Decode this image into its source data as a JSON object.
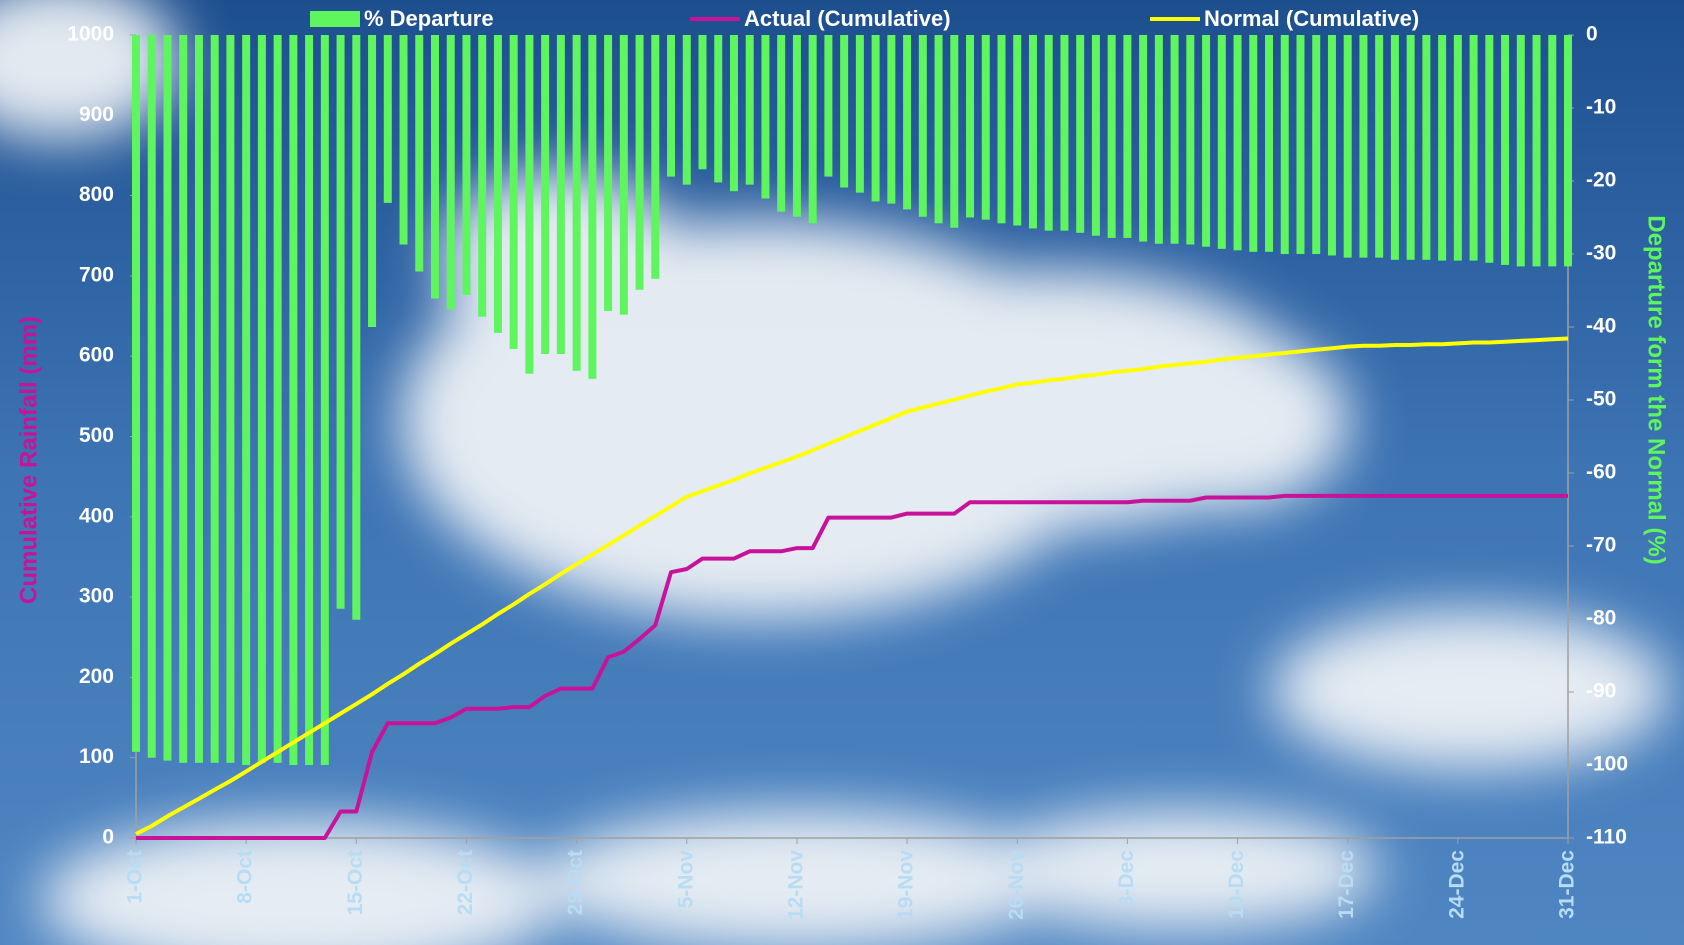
{
  "chart_data": {
    "type": "combo",
    "legend": "top",
    "y_label": "Cumulative Rainfall (mm)",
    "y2_label": "Departure form the Normal (%)",
    "ylim": [
      0,
      1000
    ],
    "yticks": [
      0,
      100,
      200,
      300,
      400,
      500,
      600,
      700,
      800,
      900,
      1000
    ],
    "y2lim": [
      -110,
      0
    ],
    "y2ticks": [
      0,
      -10,
      -20,
      -30,
      -40,
      -50,
      -60,
      -70,
      -80,
      -90,
      -100,
      -110
    ],
    "categories": [
      "1-Oct",
      null,
      null,
      null,
      null,
      null,
      null,
      "8-Oct",
      null,
      null,
      null,
      null,
      null,
      null,
      "15-Oct",
      null,
      null,
      null,
      null,
      null,
      null,
      "22-Oct",
      null,
      null,
      null,
      null,
      null,
      null,
      "29-Oct",
      null,
      null,
      null,
      null,
      null,
      null,
      "5-Nov",
      null,
      null,
      null,
      null,
      null,
      null,
      "12-Nov",
      null,
      null,
      null,
      null,
      null,
      null,
      "19-Nov",
      null,
      null,
      null,
      null,
      null,
      null,
      "26-Nov",
      null,
      null,
      null,
      null,
      null,
      null,
      "3-Dec",
      null,
      null,
      null,
      null,
      null,
      null,
      "10-Dec",
      null,
      null,
      null,
      null,
      null,
      null,
      "17-Dec",
      null,
      null,
      null,
      null,
      null,
      null,
      "24-Dec",
      null,
      null,
      null,
      null,
      null,
      null,
      "31-Dec"
    ],
    "series": [
      {
        "name": "% Departure",
        "type": "bar",
        "axis": "y2",
        "color": "#5ef55e",
        "values": [
          -98.2,
          -99,
          -99.4,
          -99.7,
          -99.7,
          -99.7,
          -99.7,
          -100,
          -99.7,
          -99.7,
          -100,
          -100,
          -100,
          -78.6,
          -80.1,
          -40,
          -23,
          -28.7,
          -32.4,
          -36.1,
          -37.6,
          -35.6,
          -38.6,
          -40.8,
          -43,
          -46.4,
          -43.7,
          -43.7,
          -46,
          -47.1,
          -37.8,
          -38.3,
          -34.9,
          -33.4,
          -19.4,
          -20.5,
          -18.4,
          -20.2,
          -21.4,
          -20.5,
          -22.4,
          -24.2,
          -24.9,
          -25.8,
          -19.4,
          -20.9,
          -21.6,
          -22.8,
          -23.1,
          -23.9,
          -24.9,
          -25.8,
          -26.4,
          -25,
          -25.3,
          -25.8,
          -26.1,
          -26.5,
          -26.8,
          -26.8,
          -27.1,
          -27.5,
          -27.8,
          -27.8,
          -28.3,
          -28.6,
          -28.6,
          -28.7,
          -29,
          -29.3,
          -29.5,
          -29.7,
          -29.7,
          -30,
          -30,
          -30,
          -30.2,
          -30.5,
          -30.5,
          -30.5,
          -30.8,
          -30.8,
          -30.8,
          -30.9,
          -30.9,
          -30.9,
          -31.2,
          -31.5,
          -31.7,
          -31.7,
          -31.7,
          -31.7
        ]
      },
      {
        "name": "Actual (Cumulative)",
        "type": "line",
        "color": "#c8129a",
        "values": [
          0,
          0,
          0,
          0,
          0,
          0,
          0,
          0,
          0,
          0,
          0,
          0,
          0,
          33,
          33,
          107,
          143,
          143,
          143,
          143,
          150,
          161,
          161,
          161,
          163,
          163,
          177,
          186,
          186,
          186,
          225,
          232,
          248,
          265,
          331,
          335,
          348,
          348,
          348,
          357,
          357,
          357,
          361,
          361,
          399,
          399,
          399,
          399,
          399,
          404,
          404,
          404,
          404,
          418,
          418,
          418,
          418,
          418,
          418,
          418,
          418,
          418,
          418,
          418,
          420,
          420,
          420,
          420,
          424,
          424,
          424,
          424,
          424,
          426,
          426,
          426,
          426,
          426,
          426,
          426,
          426,
          426,
          426,
          426,
          426,
          426,
          426,
          426,
          426,
          426,
          426,
          426
        ]
      },
      {
        "name": "Normal (Cumulative)",
        "type": "line",
        "color": "#ffff00",
        "values": [
          5,
          15,
          27,
          38,
          49,
          60,
          71,
          83,
          95,
          107,
          119,
          131,
          143,
          155,
          167,
          179,
          192,
          204,
          217,
          229,
          242,
          254,
          266,
          279,
          291,
          304,
          316,
          329,
          341,
          353,
          365,
          377,
          389,
          401,
          413,
          425,
          432,
          439,
          446,
          454,
          461,
          468,
          475,
          483,
          491,
          499,
          507,
          515,
          523,
          531,
          536,
          541,
          546,
          551,
          556,
          560,
          565,
          567,
          570,
          572,
          575,
          577,
          580,
          582,
          584,
          587,
          589,
          591,
          593,
          596,
          598,
          600,
          602,
          604,
          606,
          608,
          610,
          612,
          613,
          613,
          614,
          614,
          615,
          615,
          616,
          617,
          617,
          618,
          619,
          620,
          621,
          622
        ]
      }
    ]
  }
}
